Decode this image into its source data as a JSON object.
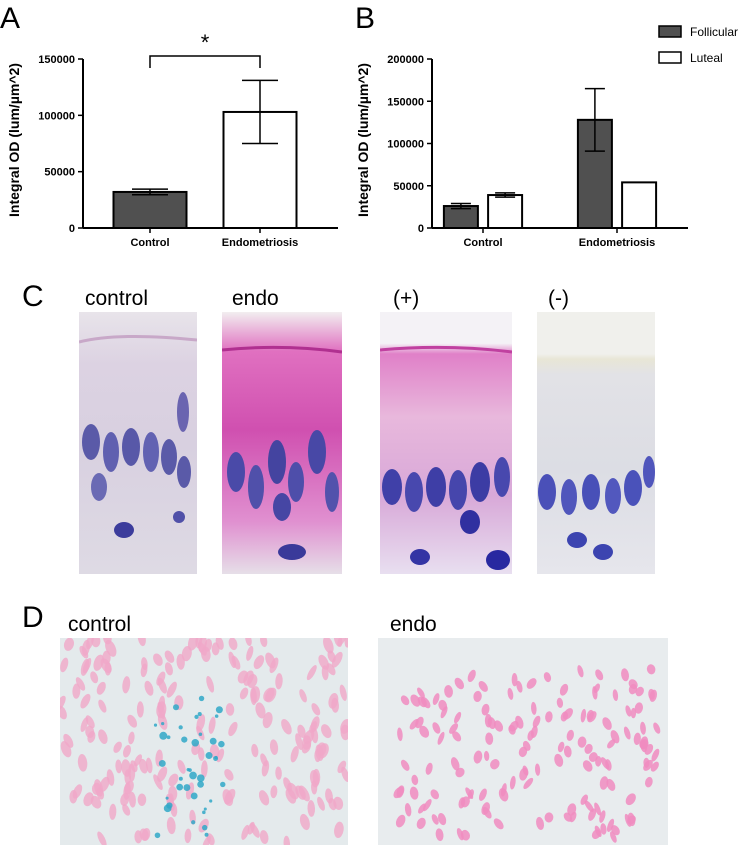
{
  "panels": {
    "A": "A",
    "B": "B",
    "C": "C",
    "D": "D"
  },
  "chart_data": [
    {
      "type": "bar",
      "panel": "A",
      "ylabel": "Integral OD (lum/µm^2)",
      "categories": [
        "Control",
        "Endometriosis"
      ],
      "values": [
        32000,
        103000
      ],
      "errors": [
        2500,
        28000
      ],
      "ylim": [
        0,
        150000
      ],
      "yticks": [
        "0",
        "50000",
        "100000",
        "150000"
      ],
      "colors": [
        "#505050",
        "#ffffff"
      ],
      "significance": {
        "between": [
          0,
          1
        ],
        "label": "*"
      },
      "grid": false
    },
    {
      "type": "bar",
      "panel": "B",
      "ylabel": "Integral OD (lum/µm^2)",
      "categories": [
        "Control",
        "Endometriosis"
      ],
      "series": [
        {
          "name": "Follicular",
          "color": "#505050",
          "values": [
            26000,
            128000
          ],
          "errors": [
            3000,
            37000
          ]
        },
        {
          "name": "Luteal",
          "color": "#ffffff",
          "values": [
            39000,
            54000
          ],
          "errors": [
            2500,
            0
          ]
        }
      ],
      "ylim": [
        0,
        200000
      ],
      "yticks": [
        "0",
        "50000",
        "100000",
        "150000",
        "200000"
      ],
      "legend": "top-right",
      "grid": false
    }
  ],
  "panelC": {
    "labels": [
      "control",
      "endo",
      "(+)",
      "(-)"
    ]
  },
  "panelD": {
    "labels": [
      "control",
      "endo"
    ]
  }
}
